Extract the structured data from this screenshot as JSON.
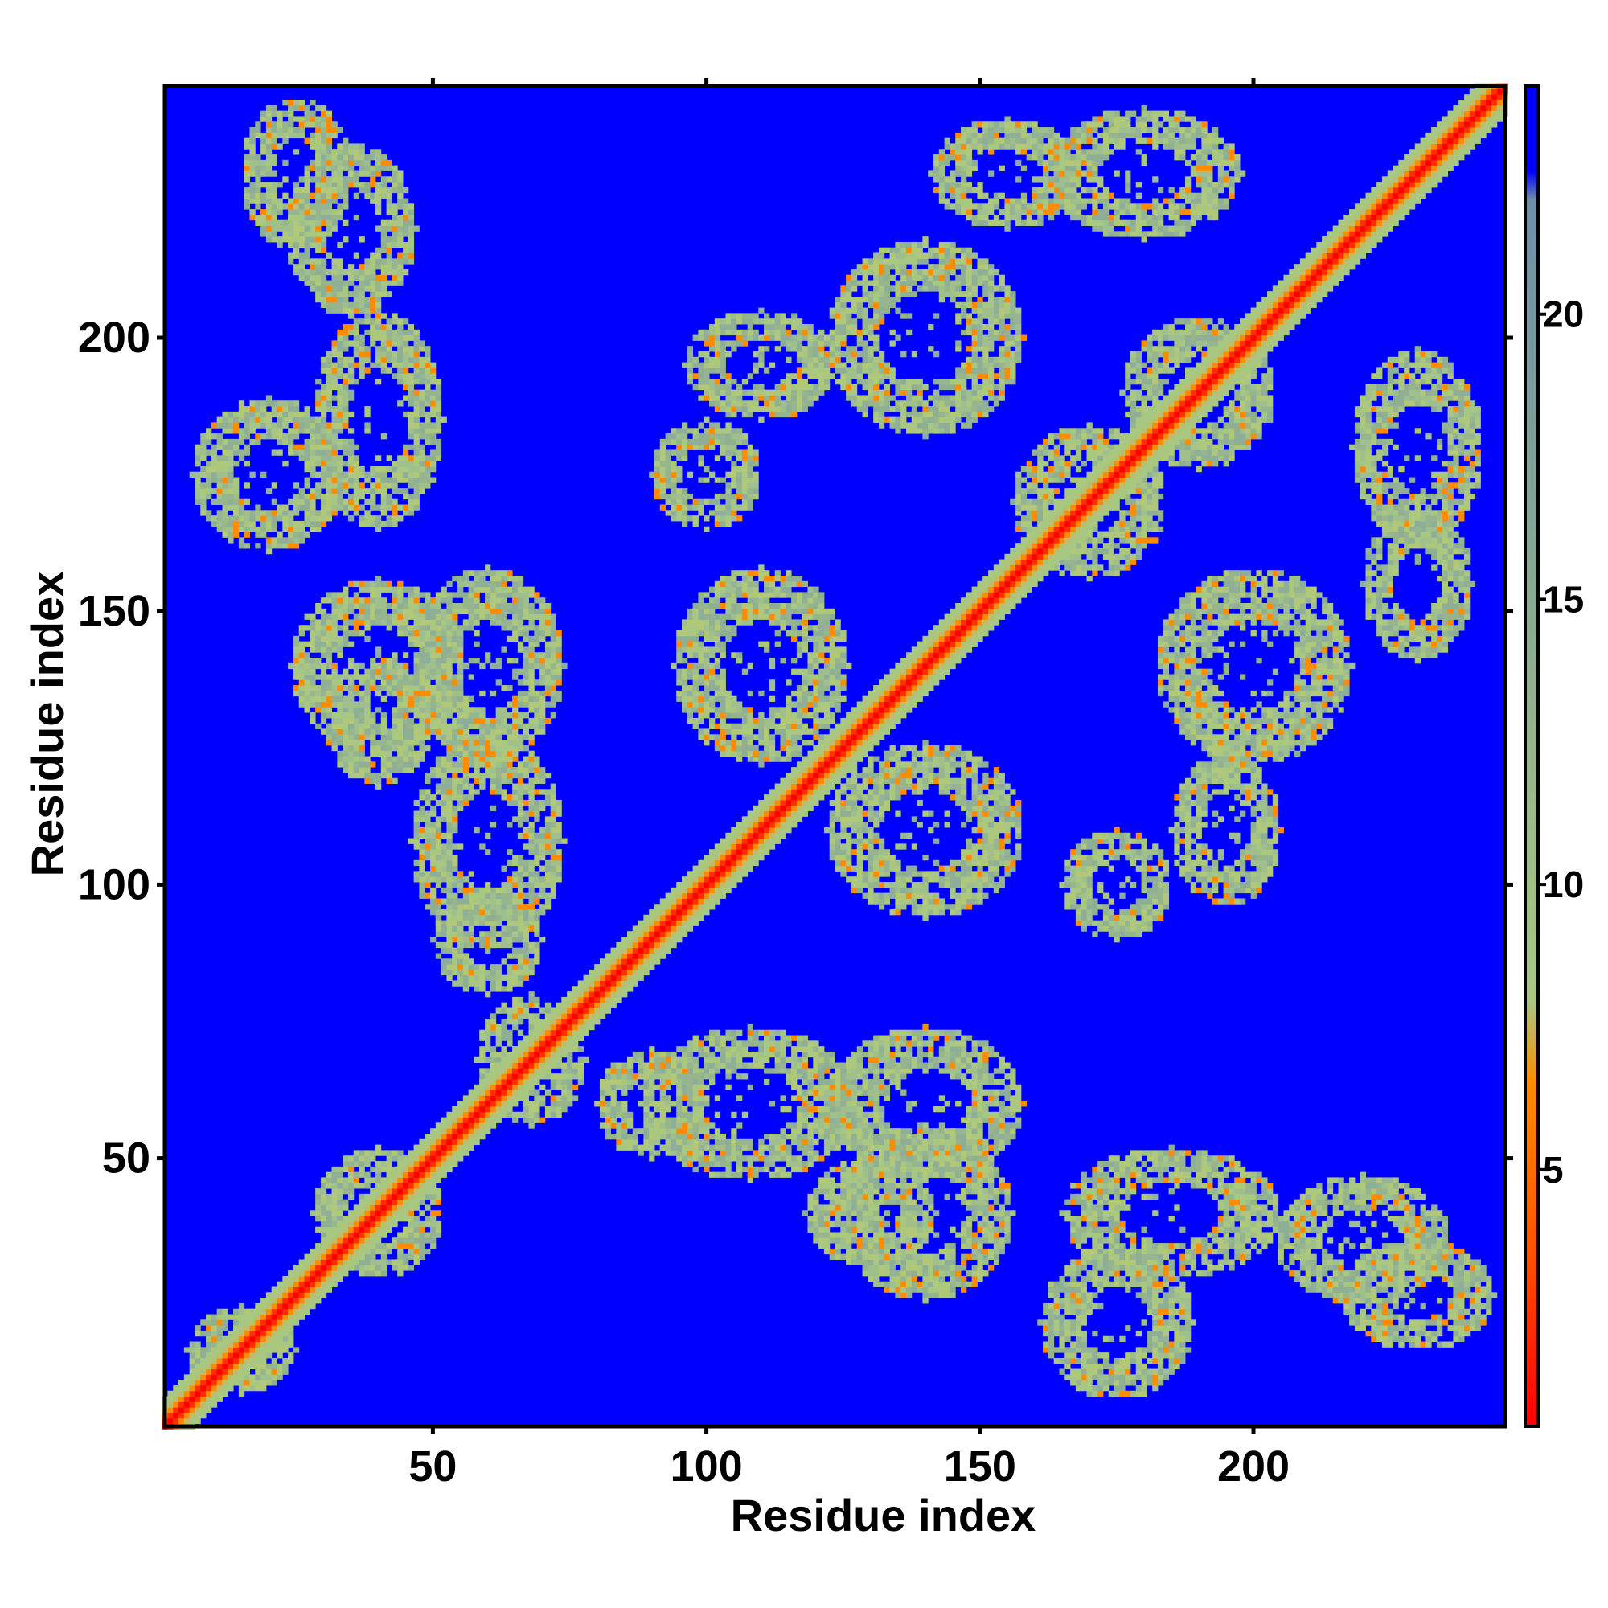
{
  "chart_data": {
    "type": "heatmap",
    "title": "",
    "xlabel": "Residue index",
    "ylabel": "Residue index",
    "xlim": [
      1,
      246
    ],
    "ylim": [
      1,
      246
    ],
    "x_ticks": [
      50,
      100,
      150,
      200
    ],
    "y_ticks": [
      50,
      100,
      150,
      200
    ],
    "matrix_size": 246,
    "colorbar": {
      "ticks": [
        5,
        10,
        15,
        20
      ],
      "range": [
        0.5,
        24
      ],
      "stops": [
        {
          "value": 0.5,
          "color": "#ff0000"
        },
        {
          "value": 3.5,
          "color": "#ff5000"
        },
        {
          "value": 6.5,
          "color": "#ff8c00"
        },
        {
          "value": 8.0,
          "color": "#a8c882"
        },
        {
          "value": 15.0,
          "color": "#8aaa92"
        },
        {
          "value": 22.0,
          "color": "#6f8fa8"
        },
        {
          "value": 22.5,
          "color": "#0000ff"
        },
        {
          "value": 24.0,
          "color": "#0000ff"
        }
      ]
    },
    "background_color": "#0000ff",
    "diagonal_color": "#ff0000",
    "contact_color": "#a8c882",
    "contact_regions": [
      {
        "x": 40,
        "y": 40,
        "rx": 12,
        "ry": 12
      },
      {
        "x": 15,
        "y": 15,
        "rx": 10,
        "ry": 8
      },
      {
        "x": 68,
        "y": 68,
        "rx": 10,
        "ry": 12
      },
      {
        "x": 108,
        "y": 60,
        "rx": 20,
        "ry": 14
      },
      {
        "x": 60,
        "y": 108,
        "rx": 14,
        "ry": 20
      },
      {
        "x": 140,
        "y": 40,
        "rx": 16,
        "ry": 16
      },
      {
        "x": 40,
        "y": 140,
        "rx": 16,
        "ry": 16
      },
      {
        "x": 60,
        "y": 140,
        "rx": 14,
        "ry": 18
      },
      {
        "x": 140,
        "y": 60,
        "rx": 18,
        "ry": 14
      },
      {
        "x": 110,
        "y": 140,
        "rx": 16,
        "ry": 18
      },
      {
        "x": 140,
        "y": 110,
        "rx": 18,
        "ry": 16
      },
      {
        "x": 170,
        "y": 170,
        "rx": 14,
        "ry": 14
      },
      {
        "x": 190,
        "y": 190,
        "rx": 14,
        "ry": 14
      },
      {
        "x": 200,
        "y": 140,
        "rx": 18,
        "ry": 18
      },
      {
        "x": 140,
        "y": 200,
        "rx": 18,
        "ry": 18
      },
      {
        "x": 180,
        "y": 230,
        "rx": 18,
        "ry": 12
      },
      {
        "x": 230,
        "y": 180,
        "rx": 12,
        "ry": 18
      },
      {
        "x": 155,
        "y": 230,
        "rx": 14,
        "ry": 10
      },
      {
        "x": 230,
        "y": 155,
        "rx": 10,
        "ry": 14
      },
      {
        "x": 25,
        "y": 230,
        "rx": 10,
        "ry": 14
      },
      {
        "x": 230,
        "y": 25,
        "rx": 14,
        "ry": 10
      },
      {
        "x": 20,
        "y": 175,
        "rx": 14,
        "ry": 14
      },
      {
        "x": 175,
        "y": 20,
        "rx": 14,
        "ry": 14
      },
      {
        "x": 110,
        "y": 195,
        "rx": 14,
        "ry": 10
      },
      {
        "x": 195,
        "y": 110,
        "rx": 10,
        "ry": 14
      },
      {
        "x": 185,
        "y": 40,
        "rx": 20,
        "ry": 12
      },
      {
        "x": 40,
        "y": 185,
        "rx": 12,
        "ry": 20
      },
      {
        "x": 220,
        "y": 35,
        "rx": 16,
        "ry": 12
      },
      {
        "x": 35,
        "y": 220,
        "rx": 12,
        "ry": 16
      },
      {
        "x": 90,
        "y": 60,
        "rx": 10,
        "ry": 10
      },
      {
        "x": 60,
        "y": 90,
        "rx": 10,
        "ry": 10
      },
      {
        "x": 175,
        "y": 100,
        "rx": 10,
        "ry": 10
      },
      {
        "x": 100,
        "y": 175,
        "rx": 10,
        "ry": 10
      },
      {
        "x": 130,
        "y": 40,
        "rx": 12,
        "ry": 10
      },
      {
        "x": 40,
        "y": 130,
        "rx": 10,
        "ry": 12
      }
    ]
  }
}
